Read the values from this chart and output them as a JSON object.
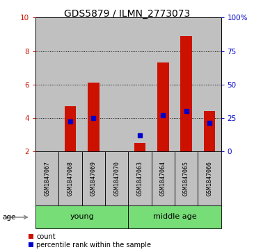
{
  "title": "GDS5879 / ILMN_2773073",
  "samples": [
    "GSM1847067",
    "GSM1847068",
    "GSM1847069",
    "GSM1847070",
    "GSM1847063",
    "GSM1847064",
    "GSM1847065",
    "GSM1847066"
  ],
  "count_values": [
    2.0,
    4.7,
    6.1,
    2.0,
    2.5,
    7.3,
    8.9,
    4.4
  ],
  "percentile_values": [
    null,
    22,
    25,
    null,
    12,
    27,
    30,
    21
  ],
  "groups": [
    {
      "label": "young",
      "start": 0,
      "end": 3
    },
    {
      "label": "middle age",
      "start": 4,
      "end": 7
    }
  ],
  "ylim_left": [
    2,
    10
  ],
  "ylim_right": [
    0,
    100
  ],
  "yticks_left": [
    2,
    4,
    6,
    8,
    10
  ],
  "yticks_right": [
    0,
    25,
    50,
    75,
    100
  ],
  "bar_color": "#cc1100",
  "marker_color": "#0000cc",
  "bar_width": 0.5,
  "base_value": 2.0,
  "age_label": "age",
  "sample_bg_color": "#c0c0c0",
  "group_color": "#77dd77",
  "legend_count_label": "count",
  "legend_pct_label": "percentile rank within the sample",
  "title_fontsize": 10,
  "tick_fontsize": 7.5,
  "sample_fontsize": 6,
  "group_fontsize": 8,
  "legend_fontsize": 7
}
